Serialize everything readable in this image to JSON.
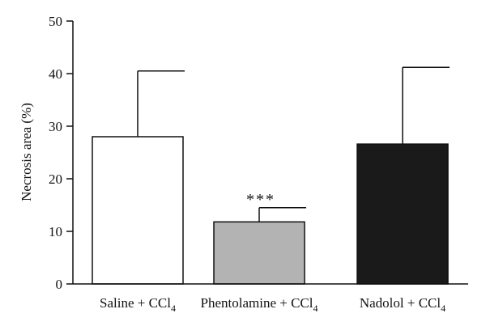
{
  "chart_data": {
    "type": "bar",
    "ylabel": "Necrosis area (%)",
    "ylim": [
      0,
      50
    ],
    "yticks": [
      0,
      10,
      20,
      30,
      40,
      50
    ],
    "grid": false,
    "categories": [
      {
        "main": "Saline + CCl",
        "sub": "4"
      },
      {
        "main": "Phentolamine + CCl",
        "sub": "4"
      },
      {
        "main": "Nadolol + CCl",
        "sub": "4"
      }
    ],
    "values": [
      28.0,
      11.8,
      26.6
    ],
    "error_upper": [
      40.5,
      14.5,
      41.2
    ],
    "colors": [
      "#ffffff",
      "#b3b3b3",
      "#1a1a1a"
    ],
    "annotations": [
      "",
      "***",
      ""
    ]
  }
}
